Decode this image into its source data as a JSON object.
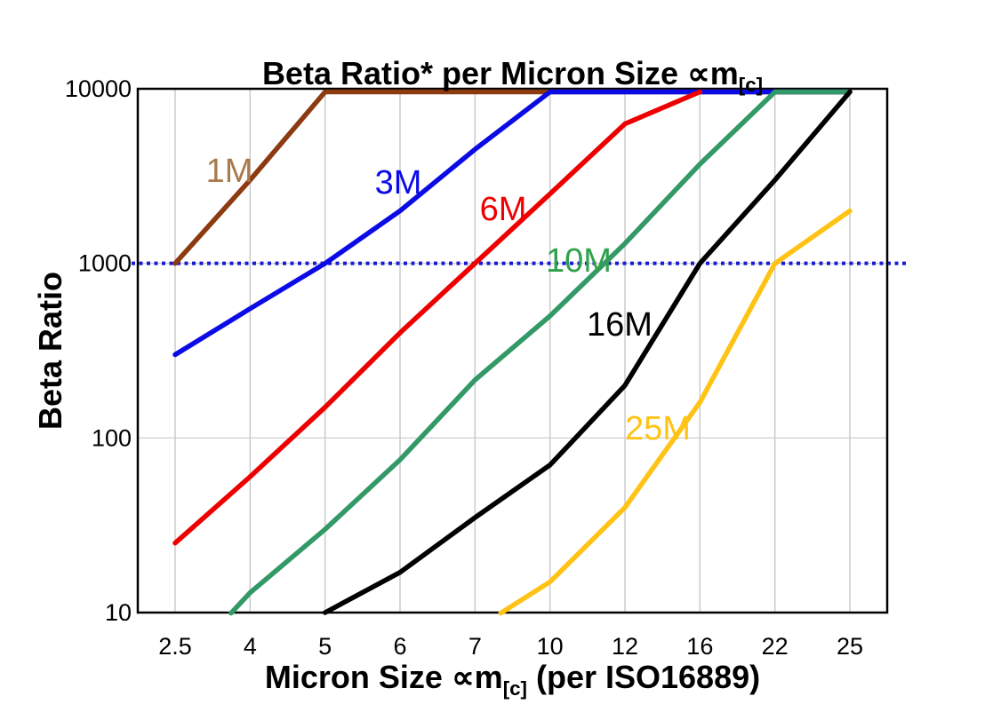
{
  "chart_data": {
    "type": "line",
    "title": {
      "text": "Beta Ratio* per Micron Size ∝m",
      "sub": "[c]"
    },
    "xlabel": {
      "text": "Micron Size ∝m",
      "sub": "[c]",
      "tail": " (per ISO16889)"
    },
    "ylabel": "Beta Ratio",
    "x_categories": [
      "2.5",
      "4",
      "5",
      "6",
      "7",
      "10",
      "12",
      "16",
      "22",
      "25"
    ],
    "y_ticks": [
      10000,
      1000,
      100,
      10
    ],
    "y_scale": "log",
    "ylim": [
      10,
      10000
    ],
    "grid": true,
    "grid_color": "#C8C8C8",
    "border_color": "#000000",
    "reference_line": {
      "value": 1000,
      "style": "dotted",
      "color": "#1A1AD2"
    },
    "legend_position": "inline-labels",
    "series": [
      {
        "name": "1M",
        "color": "#8C3A10",
        "label_color": "#A97B4C",
        "label_pos": [
          258,
          193
        ],
        "values": [
          1000,
          3000,
          10000,
          10000,
          10000,
          10000,
          10000,
          10000,
          10000,
          10000
        ]
      },
      {
        "name": "3M",
        "color": "#0B0BE6",
        "label_color": "#0B0BE6",
        "label_pos": [
          448,
          206
        ],
        "values": [
          300,
          550,
          1000,
          2000,
          4500,
          10000,
          10000,
          10000,
          10000,
          10000
        ]
      },
      {
        "name": "6M",
        "color": "#EE0000",
        "label_color": "#EE0000",
        "label_pos": [
          566,
          236
        ],
        "values": [
          25,
          60,
          150,
          400,
          1000,
          2500,
          6300,
          14000,
          null,
          null
        ]
      },
      {
        "name": "10M",
        "color": "#339966",
        "label_color": "#2FA14D",
        "label_pos": [
          651,
          294
        ],
        "values": [
          4.5,
          13,
          30,
          75,
          215,
          500,
          1300,
          3700,
          10000,
          10000
        ]
      },
      {
        "name": "16M",
        "color": "#000000",
        "label_color": "#000000",
        "label_pos": [
          697,
          366
        ],
        "values": [
          null,
          null,
          10,
          17,
          35,
          70,
          200,
          1000,
          3000,
          10000
        ]
      },
      {
        "name": "25M",
        "color": "#FFC316",
        "label_color": "#FFC316",
        "label_pos": [
          740,
          483
        ],
        "values": [
          null,
          null,
          null,
          null,
          8,
          15,
          40,
          160,
          1000,
          2000
        ]
      }
    ]
  }
}
